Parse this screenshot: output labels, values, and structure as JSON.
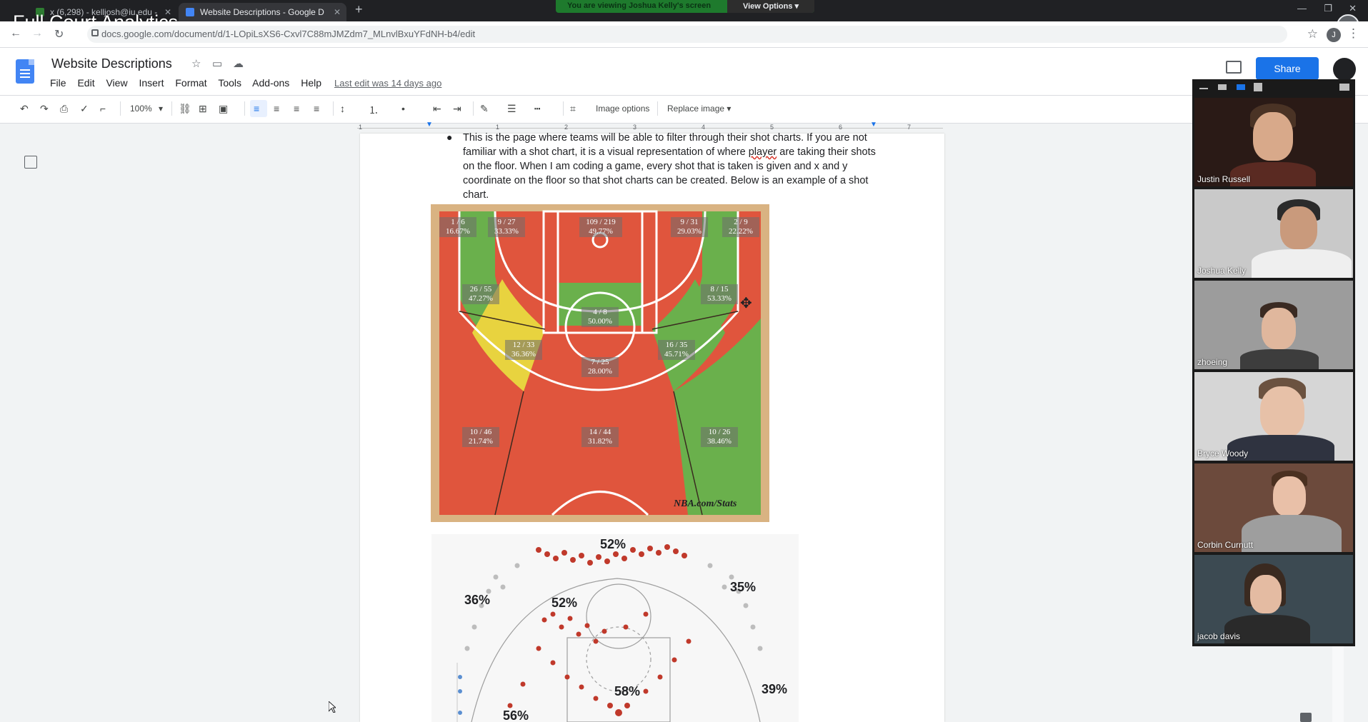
{
  "overlay_title": "Full Court Analytics",
  "browser": {
    "tabs": [
      {
        "label": "x (6,298) - kelljosh@iu.edu -",
        "close": "✕"
      },
      {
        "label": "Website Descriptions - Google D",
        "close": "✕"
      }
    ],
    "url": "docs.google.com/document/d/1-LOpiLsXS6-Cxvl7C88mJMZdm7_MLnvlBxuYFdNH-b4/edit"
  },
  "zoom_banner": {
    "text": "You are viewing Joshua Kelly's screen",
    "options": "View Options ▾"
  },
  "docs": {
    "title": "Website Descriptions",
    "menus": [
      "File",
      "Edit",
      "View",
      "Insert",
      "Format",
      "Tools",
      "Add-ons",
      "Help"
    ],
    "last_edit": "Last edit was 14 days ago",
    "share": "Share"
  },
  "toolbar": {
    "zoom": "100%",
    "image_options": "Image options",
    "replace_image": "Replace image ▾"
  },
  "ruler": [
    "1",
    "1",
    "2",
    "3",
    "4",
    "5",
    "6",
    "7"
  ],
  "document": {
    "paragraph_before": "This is the page where teams will be able to filter through their shot charts. If you are not familiar with a shot chart, it is a visual representation of where ",
    "misspelled_word": "player",
    "paragraph_after": " are taking their shots on the floor. When I am coding a game, every shot that is taken is given and x and y coordinate on the floor so that shot charts can be created. Below is an example of a shot chart."
  },
  "shot_chart_1": {
    "source_label": "NBA.com/Stats",
    "zones": [
      {
        "id": "left-corner",
        "made": "1 / 6",
        "pct": "16.67%",
        "color": "#e0553d"
      },
      {
        "id": "left-baseline-mid",
        "made": "9 / 27",
        "pct": "33.33%",
        "color": "#e0553d"
      },
      {
        "id": "restricted",
        "made": "109 / 219",
        "pct": "49.77%",
        "color": "#e0553d"
      },
      {
        "id": "right-baseline-mid",
        "made": "9 / 31",
        "pct": "29.03%",
        "color": "#e0553d"
      },
      {
        "id": "right-corner",
        "made": "2 / 9",
        "pct": "22.22%",
        "color": "#e0553d"
      },
      {
        "id": "left-wing-mid",
        "made": "26 / 55",
        "pct": "47.27%",
        "color": "#6ab04c"
      },
      {
        "id": "paint",
        "made": "4 / 8",
        "pct": "50.00%",
        "color": "#6ab04c"
      },
      {
        "id": "right-wing-mid",
        "made": "8 / 15",
        "pct": "53.33%",
        "color": "#6ab04c"
      },
      {
        "id": "left-elbow",
        "made": "12 / 33",
        "pct": "36.36%",
        "color": "#e8d33f"
      },
      {
        "id": "top-key-mid",
        "made": "7 / 25",
        "pct": "28.00%",
        "color": "#e0553d"
      },
      {
        "id": "right-elbow",
        "made": "16 / 35",
        "pct": "45.71%",
        "color": "#6ab04c"
      },
      {
        "id": "left-wing-three",
        "made": "10 / 46",
        "pct": "21.74%",
        "color": "#e0553d"
      },
      {
        "id": "top-three",
        "made": "14 / 44",
        "pct": "31.82%",
        "color": "#e0553d"
      },
      {
        "id": "right-wing-three",
        "made": "10 / 26",
        "pct": "38.46%",
        "color": "#6ab04c"
      }
    ]
  },
  "shot_chart_2": {
    "labels": [
      "52%",
      "36%",
      "52%",
      "35%",
      "58%",
      "39%",
      "56%"
    ]
  },
  "participants": [
    {
      "name": "Justin Russell"
    },
    {
      "name": "Joshua Kelly"
    },
    {
      "name": "zhoeing"
    },
    {
      "name": "Bryce Woody"
    },
    {
      "name": "Corbin Curnutt"
    },
    {
      "name": "jacob davis"
    }
  ],
  "profile_initial": "J"
}
